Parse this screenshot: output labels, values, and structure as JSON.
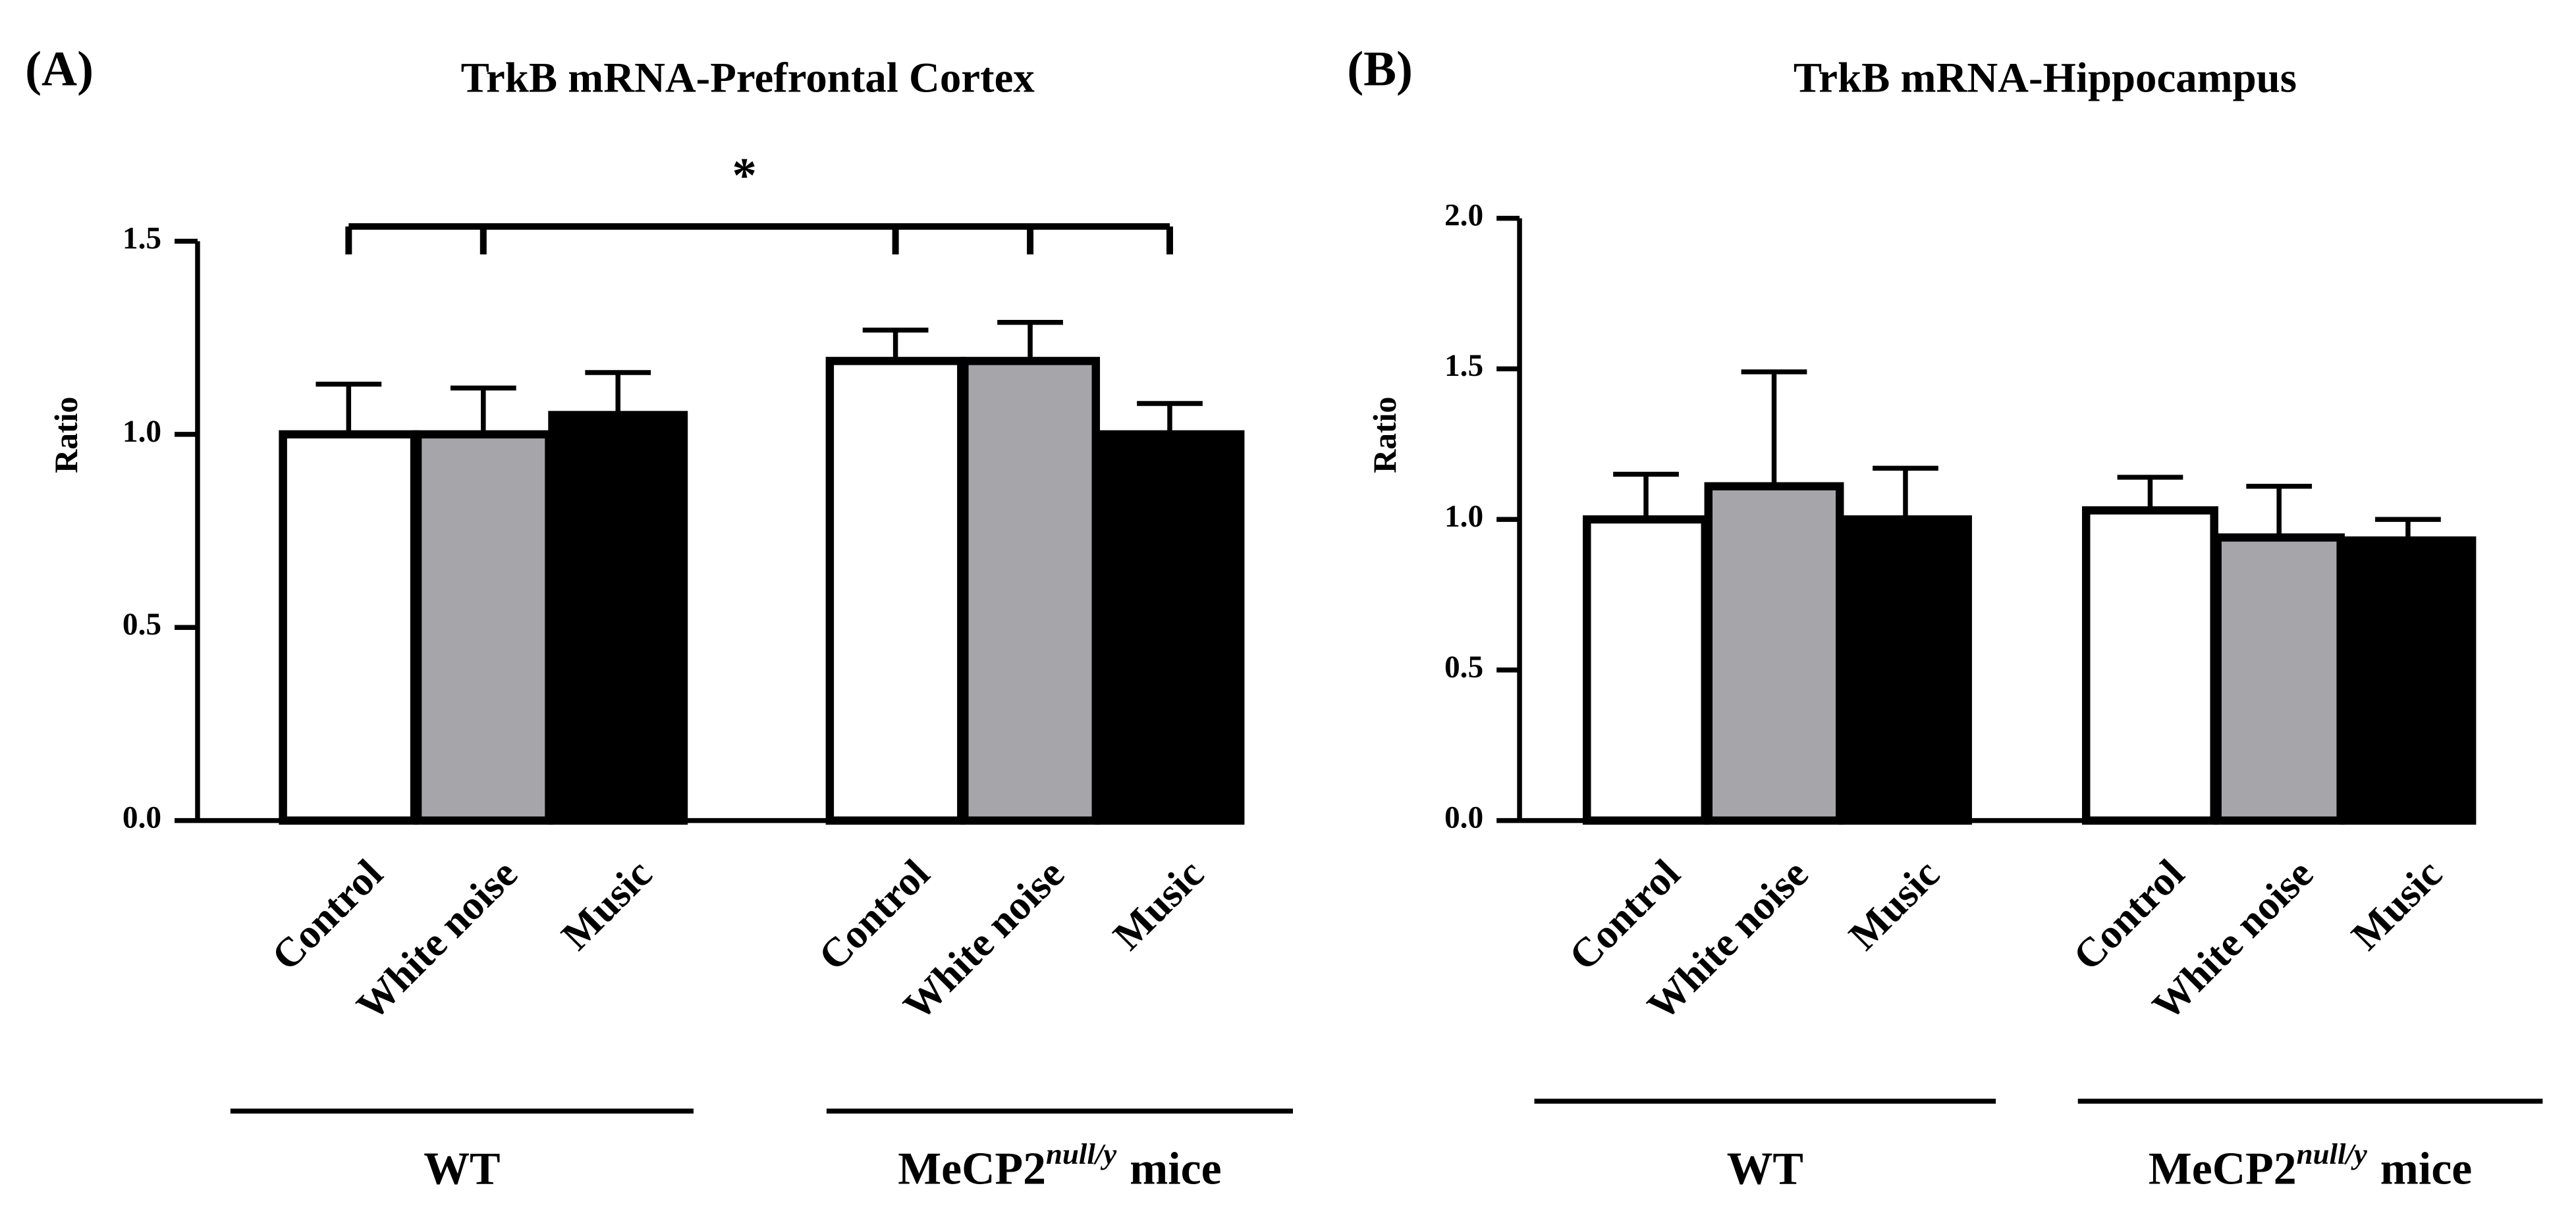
{
  "chart_data": [
    {
      "type": "bar",
      "panel": "(A)",
      "title": "TrkB mRNA-Prefrontal Cortex",
      "y_label": "Ratio",
      "categories": [
        "Control",
        "White noise",
        "Music",
        "Control",
        "White noise",
        "Music"
      ],
      "values": [
        1.0,
        1.0,
        1.05,
        1.19,
        1.19,
        1.0
      ],
      "errors": [
        0.13,
        0.12,
        0.11,
        0.08,
        0.1,
        0.08
      ],
      "colors": [
        "#ffffff",
        "#a6a5aa",
        "#000000",
        "#ffffff",
        "#a6a5aa",
        "#000000"
      ],
      "groups": [
        {
          "label": "WT"
        },
        {
          "label": "MeCP2",
          "sup": "null/y",
          "rest": "mice"
        }
      ],
      "annotations": [
        {
          "text": "*"
        }
      ],
      "ylim": [
        0,
        1.5
      ],
      "yticks": [
        {
          "value": 0,
          "label": "0.0"
        },
        0.5,
        {
          "value": 1,
          "label": "1.0"
        },
        1.5
      ]
    },
    {
      "type": "bar",
      "panel": "(B)",
      "title": "TrkB mRNA-Hippocampus",
      "y_label": "Ratio",
      "categories": [
        "Control",
        "White noise",
        "Music",
        "Control",
        "White noise",
        "Music"
      ],
      "values": [
        1.0,
        1.11,
        1.0,
        1.03,
        0.94,
        0.93
      ],
      "errors": [
        0.15,
        0.38,
        0.17,
        0.11,
        0.17,
        0.07
      ],
      "colors": [
        "#ffffff",
        "#a6a5aa",
        "#000000",
        "#ffffff",
        "#a6a5aa",
        "#000000"
      ],
      "groups": [
        {
          "label": "WT"
        },
        {
          "label": "MeCP2",
          "sup": "null/y",
          "rest": "mice"
        }
      ],
      "ylim": [
        0,
        2.0
      ],
      "yticks": [
        {
          "value": 0,
          "label": "0.0"
        },
        0.5,
        {
          "value": 1,
          "label": "1.0"
        },
        1.5,
        {
          "value": 2,
          "label": "2.0"
        }
      ]
    }
  ]
}
